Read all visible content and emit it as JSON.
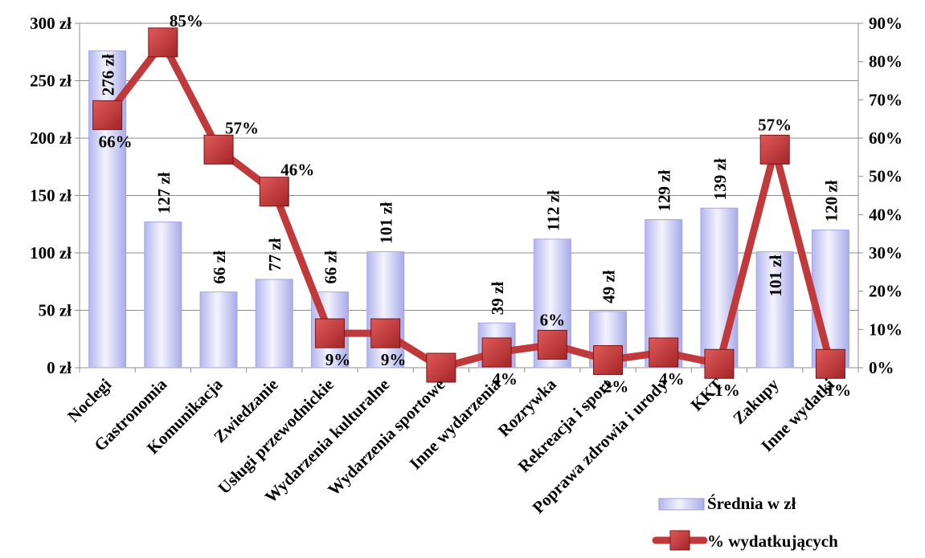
{
  "chart_data": {
    "type": "bar+line",
    "categories": [
      "Noclegi",
      "Gastronomia",
      "Komunikacja",
      "Zwiedzanie",
      "Usługi przewodnickie",
      "Wydarzenia kulturalne",
      "Wydarzenia sportowe",
      "Inne wydarzenia",
      "Rozrywka",
      "Rekreacja i sport",
      "Poprawa zdrowia i urody",
      "KKT",
      "Zakupy",
      "Inne wydatki"
    ],
    "series": [
      {
        "name": "Średnia w zł",
        "type": "bar",
        "axis": "left",
        "values": [
          276,
          127,
          66,
          77,
          66,
          101,
          null,
          39,
          112,
          49,
          129,
          139,
          101,
          120
        ],
        "labels": [
          "276 zł",
          "127 zł",
          "66 zł",
          "77 zł",
          "66 zł",
          "101 zł",
          "",
          "39 zł",
          "112 zł",
          "49 zł",
          "129 zł",
          "139 zł",
          "101 zł",
          "120 zł"
        ],
        "color": "#c9caf5"
      },
      {
        "name": "% wydatkujących",
        "type": "line",
        "axis": "right",
        "values": [
          66,
          85,
          57,
          46,
          9,
          9,
          0,
          4,
          6,
          2,
          4,
          1,
          57,
          1
        ],
        "labels": [
          "66%",
          "85%",
          "57%",
          "46%",
          "9%",
          "9%",
          "",
          "4%",
          "6%",
          "2%",
          "4%",
          "1%",
          "57%",
          "1%"
        ],
        "color": "#c0393b"
      }
    ],
    "y_left": {
      "min": 0,
      "max": 300,
      "step": 50,
      "tick_labels": [
        "0 zł",
        "50 zł",
        "100 zł",
        "150 zł",
        "200 zł",
        "250 zł",
        "300 zł"
      ]
    },
    "y_right": {
      "min": 0,
      "max": 90,
      "step": 10,
      "tick_labels": [
        "0%",
        "10%",
        "20%",
        "30%",
        "40%",
        "50%",
        "60%",
        "70%",
        "80%",
        "90%"
      ]
    },
    "grid": true,
    "legend": "bottom-right"
  }
}
